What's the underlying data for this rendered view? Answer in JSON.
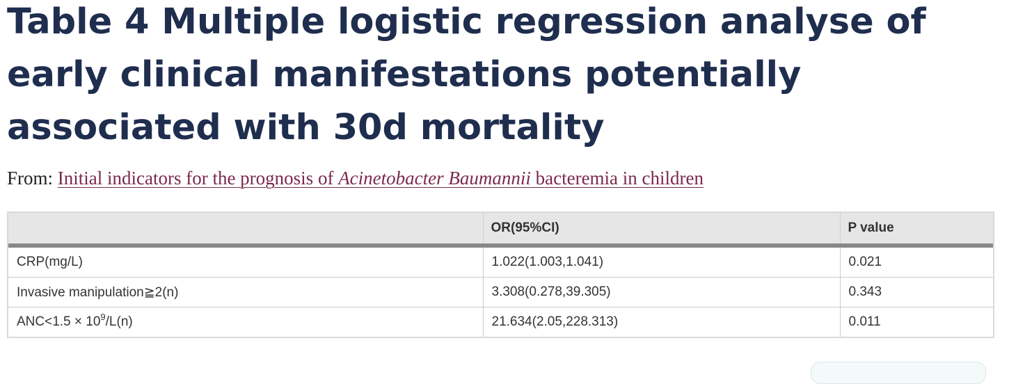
{
  "title": "Table 4 Multiple logistic regression analyse of early clinical manifestations potentially associated with 30d mortality",
  "from": {
    "prefix": "From:",
    "link_part1": "Initial indicators for the prognosis of ",
    "link_italic": "Acinetobacter Baumannii",
    "link_part2": " bacteremia in children"
  },
  "table": {
    "headers": [
      "",
      "OR(95%CI)",
      "P value"
    ],
    "rows": [
      {
        "label": "CRP(mg/L)",
        "or": "1.022(1.003,1.041)",
        "p": "0.021"
      },
      {
        "label": "Invasive manipulation≧2(n)",
        "or": "3.308(0.278,39.305)",
        "p": "0.343"
      },
      {
        "label_prefix": "ANC<1.5 × 10",
        "label_sup": "9",
        "label_suffix": "/L(n)",
        "or": "21.634(2.05,228.313)",
        "p": "0.011"
      }
    ]
  }
}
